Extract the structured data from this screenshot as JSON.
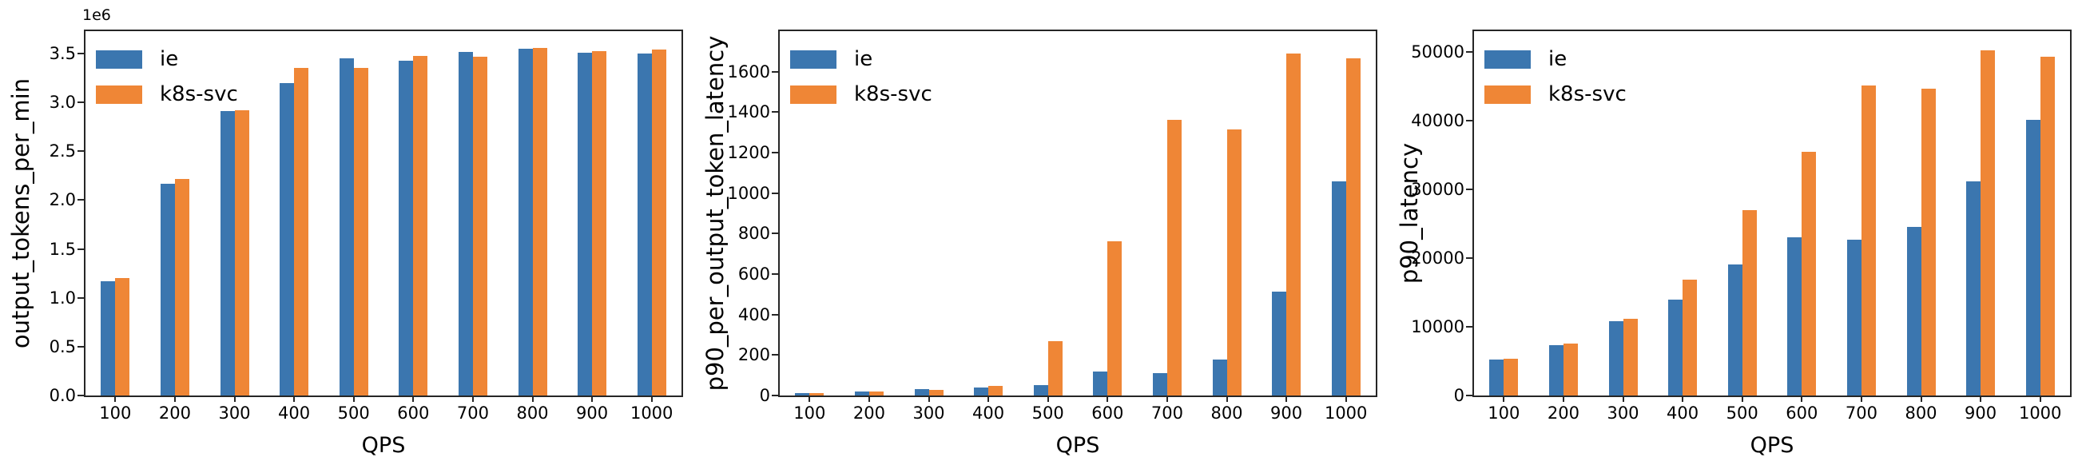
{
  "figure": {
    "background": "#ffffff",
    "spine_color": "#262626",
    "series_colors": {
      "ie": "#3b76af",
      "k8s-svc": "#ef8636"
    }
  },
  "chart_data": [
    {
      "type": "bar",
      "title": "",
      "xlabel": "QPS",
      "ylabel": "output_tokens_per_min",
      "offset_label": "1e6",
      "legend_position": "upper-left",
      "grid": false,
      "categories": [
        "100",
        "200",
        "300",
        "400",
        "500",
        "600",
        "700",
        "800",
        "900",
        "1000"
      ],
      "series": [
        {
          "name": "ie",
          "color": "#3b76af",
          "values": [
            1170000,
            2170000,
            2910000,
            3200000,
            3450000,
            3430000,
            3520000,
            3550000,
            3510000,
            3500000
          ]
        },
        {
          "name": "k8s-svc",
          "color": "#ef8636",
          "values": [
            1200000,
            2220000,
            2920000,
            3350000,
            3350000,
            3480000,
            3470000,
            3560000,
            3525000,
            3540000
          ]
        }
      ],
      "yticks": [
        0,
        500000,
        1000000,
        1500000,
        2000000,
        2500000,
        3000000,
        3500000
      ],
      "ytick_labels": [
        "0.0",
        "0.5",
        "1.0",
        "1.5",
        "2.0",
        "2.5",
        "3.0",
        "3.5"
      ],
      "ylim": [
        0,
        3730000
      ]
    },
    {
      "type": "bar",
      "title": "",
      "xlabel": "QPS",
      "ylabel": "p90_per_output_token_latency",
      "offset_label": "",
      "legend_position": "upper-left",
      "grid": false,
      "categories": [
        "100",
        "200",
        "300",
        "400",
        "500",
        "600",
        "700",
        "800",
        "900",
        "1000"
      ],
      "series": [
        {
          "name": "ie",
          "color": "#3b76af",
          "values": [
            12,
            20,
            30,
            40,
            50,
            118,
            110,
            177,
            515,
            1058
          ]
        },
        {
          "name": "k8s-svc",
          "color": "#ef8636",
          "values": [
            10,
            19,
            28,
            48,
            267,
            762,
            1360,
            1315,
            1690,
            1665
          ]
        }
      ],
      "yticks": [
        0,
        200,
        400,
        600,
        800,
        1000,
        1200,
        1400,
        1600
      ],
      "ytick_labels": [
        "0",
        "200",
        "400",
        "600",
        "800",
        "1000",
        "1200",
        "1400",
        "1600"
      ],
      "ylim": [
        0,
        1800
      ]
    },
    {
      "type": "bar",
      "title": "",
      "xlabel": "QPS",
      "ylabel": "p90_latency",
      "offset_label": "",
      "legend_position": "upper-left",
      "grid": false,
      "categories": [
        "100",
        "200",
        "300",
        "400",
        "500",
        "600",
        "700",
        "800",
        "900",
        "1000"
      ],
      "series": [
        {
          "name": "ie",
          "color": "#3b76af",
          "values": [
            5200,
            7300,
            10800,
            13900,
            19100,
            23000,
            22700,
            24500,
            31200,
            40100
          ]
        },
        {
          "name": "k8s-svc",
          "color": "#ef8636",
          "values": [
            5400,
            7600,
            11100,
            16800,
            27000,
            35400,
            45100,
            44600,
            50200,
            49300
          ]
        }
      ],
      "yticks": [
        0,
        10000,
        20000,
        30000,
        40000,
        50000
      ],
      "ytick_labels": [
        "0",
        "10000",
        "20000",
        "30000",
        "40000",
        "50000"
      ],
      "ylim": [
        0,
        53000
      ]
    }
  ]
}
